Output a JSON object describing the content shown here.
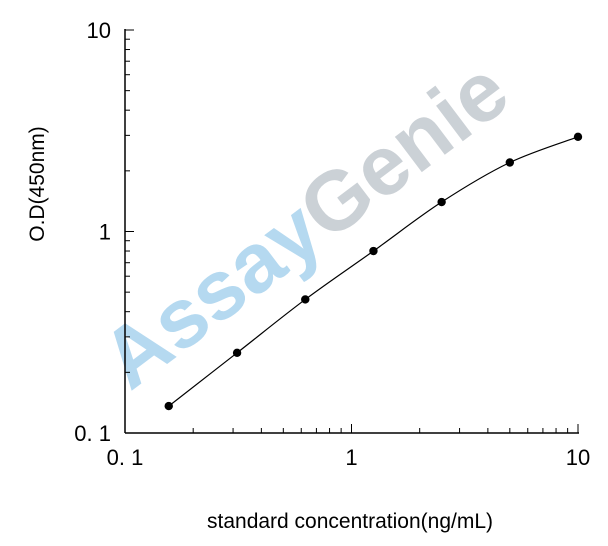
{
  "chart_data": {
    "type": "line",
    "title": "",
    "xlabel": "standard concentration(ng/mL)",
    "ylabel": "O.D(450nm)",
    "xscale": "log",
    "yscale": "log",
    "xlim": [
      0.1,
      10
    ],
    "ylim": [
      0.1,
      10
    ],
    "xticks": [
      0.1,
      1,
      10
    ],
    "yticks": [
      0.1,
      1,
      10
    ],
    "xtick_labels": [
      "0. 1",
      "1",
      "10"
    ],
    "ytick_labels": [
      "0. 1",
      "1",
      "10"
    ],
    "grid": false,
    "legend": "none",
    "series": [
      {
        "x": [
          0.156,
          0.3125,
          0.625,
          1.25,
          2.5,
          5,
          10
        ],
        "y": [
          0.136,
          0.25,
          0.46,
          0.8,
          1.4,
          2.2,
          2.95
        ],
        "color": "#000000",
        "marker": "circle"
      }
    ],
    "watermark": {
      "text_part1": "Assay",
      "text_part2": "Genie",
      "color_part1": "#a9d3ee",
      "color_part2": "#c3c9cf"
    }
  }
}
